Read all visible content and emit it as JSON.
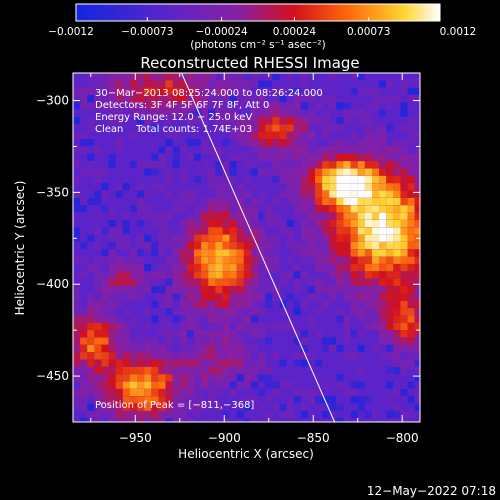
{
  "chart_data": {
    "type": "heatmap",
    "title": "Reconstructed RHESSI Image",
    "xlabel": "Heliocentric X (arcsec)",
    "ylabel": "Heliocentric Y (arcsec)",
    "xlim": [
      -985,
      -790
    ],
    "ylim": [
      -475,
      -285
    ],
    "x_ticks": [
      -950,
      -900,
      -850,
      -800
    ],
    "y_ticks": [
      -300,
      -350,
      -400,
      -450
    ],
    "x_tick_labels": [
      "−950",
      "−900",
      "−850",
      "−800"
    ],
    "y_tick_labels": [
      "−300",
      "−350",
      "−400",
      "−450"
    ],
    "colorbar": {
      "min": -0.0012,
      "max": 0.0012,
      "ticks": [
        -0.0012,
        -0.00073,
        -0.00024,
        0.00024,
        0.00073,
        0.0012
      ],
      "tick_labels": [
        "−0.0012",
        "−0.00073",
        "−0.00024",
        "0.00024",
        "0.00073",
        "0.0012"
      ],
      "unit_label": "(photons cm⁻² s⁻¹ asec⁻²)"
    },
    "annotations": [
      "30−Mar−2013 08:25:24.000 to 08:26:24.000",
      "Detectors: 3F 4F 5F 6F 7F 8F, Att 0",
      "Energy Range: 12.0 − 25.0 keV",
      "Clean    Total counts: 1.74E+03"
    ],
    "peak_label": "Position of Peak = [−811,−368]",
    "peak_position": [
      -811,
      -368
    ],
    "limb_line": [
      [
        -924,
        -285
      ],
      [
        -838,
        -475
      ]
    ],
    "grid": false,
    "sources": [
      {
        "x": -812,
        "y": -368,
        "sx": 20,
        "sy": 22,
        "amp": 1.0
      },
      {
        "x": -836,
        "y": -342,
        "sx": 14,
        "sy": 10,
        "amp": 0.85
      },
      {
        "x": -905,
        "y": -385,
        "sx": 14,
        "sy": 18,
        "amp": 0.85
      },
      {
        "x": -948,
        "y": -455,
        "sx": 14,
        "sy": 12,
        "amp": 0.8
      },
      {
        "x": -975,
        "y": -430,
        "sx": 10,
        "sy": 12,
        "amp": 0.65
      },
      {
        "x": -872,
        "y": -314,
        "sx": 12,
        "sy": 9,
        "amp": 0.55
      },
      {
        "x": -937,
        "y": -292,
        "sx": 22,
        "sy": 8,
        "amp": 0.5
      },
      {
        "x": -800,
        "y": -418,
        "sx": 9,
        "sy": 10,
        "amp": 0.55
      },
      {
        "x": -958,
        "y": -395,
        "sx": 10,
        "sy": 8,
        "amp": 0.35
      },
      {
        "x": -905,
        "y": -440,
        "sx": 16,
        "sy": 10,
        "amp": 0.3
      }
    ]
  },
  "footer_timestamp": "12−May−2022 07:18"
}
